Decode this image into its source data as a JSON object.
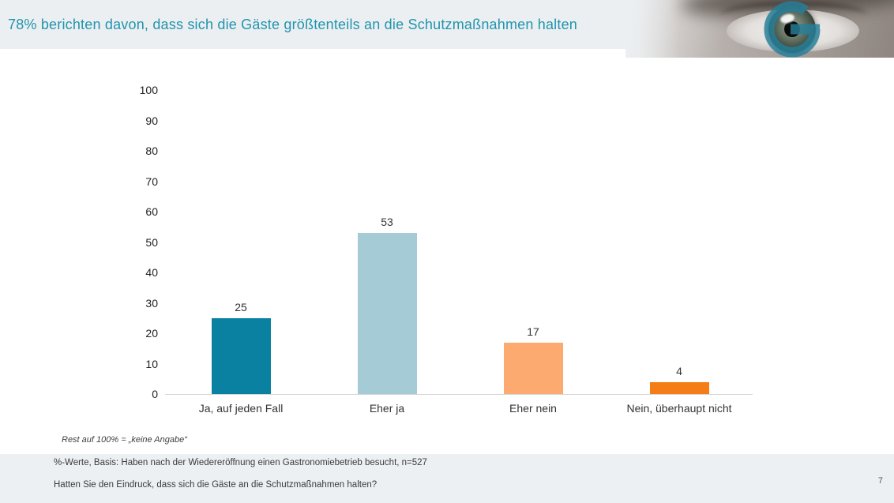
{
  "header": {
    "title": "78% berichten davon, dass sich die Gäste größtenteils an die Schutzmaßnahmen halten",
    "title_color": "#2095ad",
    "photo": "eye-closeup-grayscale",
    "logo_icon": "teal-g-ring-logo",
    "logo_color": "#26809b"
  },
  "footnote": "Rest auf 100% = „keine Angabe“",
  "footer": {
    "basis_line": "%-Werte, Basis: Haben nach der Wiedereröffnung einen Gastronomiebetrieb besucht, n=527",
    "question_line": "Hatten Sie den Eindruck, dass sich die Gäste an die Schutzmaßnahmen halten?",
    "page_number": "7"
  },
  "chart_data": {
    "type": "bar",
    "categories": [
      "Ja, auf jeden Fall",
      "Eher ja",
      "Eher nein",
      "Nein, überhaupt nicht"
    ],
    "values": [
      25,
      53,
      17,
      4
    ],
    "bar_colors": [
      "#0a81a1",
      "#a5ccd6",
      "#fcaa70",
      "#f57d17"
    ],
    "title": "",
    "xlabel": "",
    "ylabel": "",
    "ylim": [
      0,
      100
    ],
    "ytick_step": 10,
    "grid": false,
    "legend": false,
    "data_labels": true,
    "axis_color": "#d5d5d5"
  }
}
